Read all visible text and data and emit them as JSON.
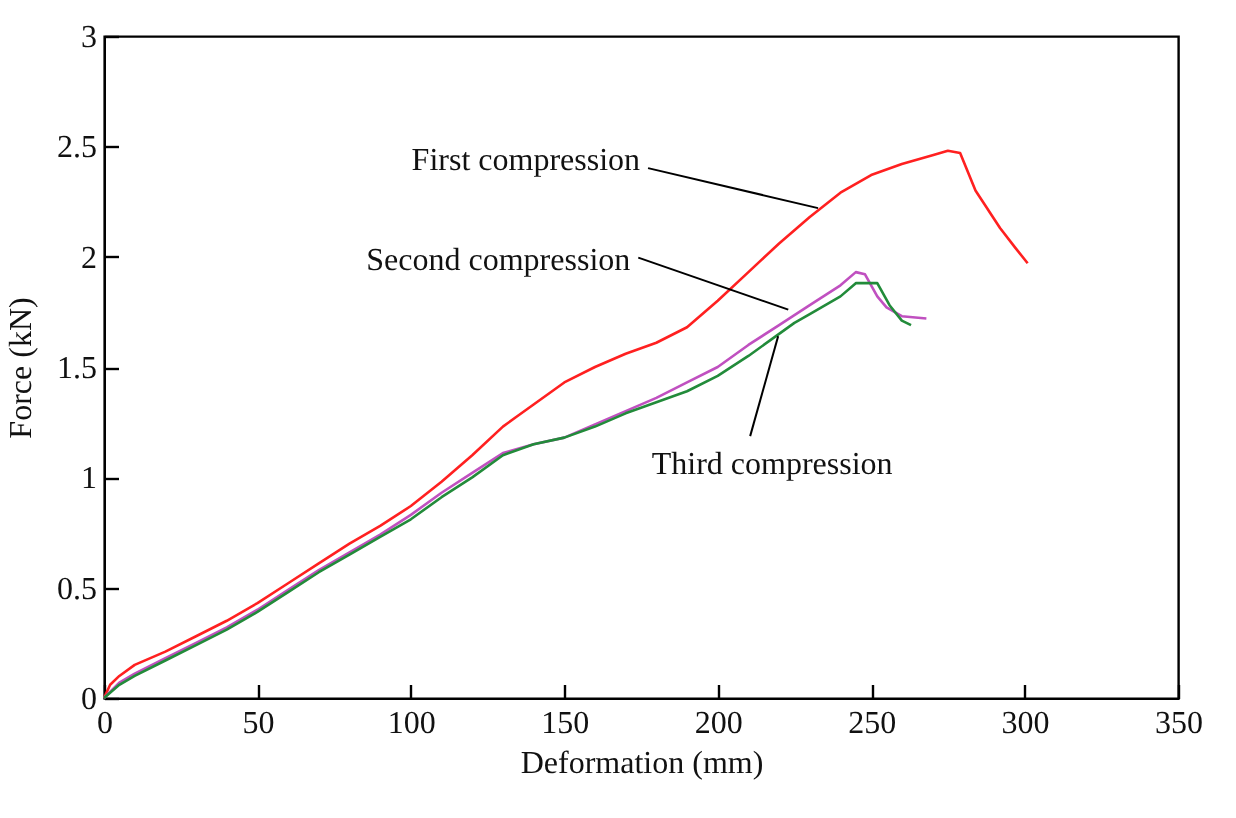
{
  "chart_data": {
    "type": "line",
    "xlabel": "Deformation (mm)",
    "ylabel": "Force (kN)",
    "xlim": [
      0,
      350
    ],
    "xticks": [
      0,
      50,
      100,
      150,
      200,
      250,
      300,
      350
    ],
    "ylim": [
      0,
      3
    ],
    "yticks": [
      0,
      0.5,
      1,
      1.5,
      2,
      2.5,
      3
    ],
    "grid": false,
    "legend": false,
    "series": [
      {
        "color": "#ff2020",
        "x": [
          0,
          2,
          5,
          10,
          20,
          30,
          40,
          50,
          60,
          70,
          80,
          90,
          100,
          110,
          120,
          130,
          135,
          140,
          150,
          160,
          170,
          180,
          190,
          200,
          210,
          220,
          230,
          240,
          250,
          260,
          270,
          275,
          279,
          284,
          292,
          297,
          301
        ],
        "values": [
          0,
          0.06,
          0.1,
          0.15,
          0.21,
          0.28,
          0.35,
          0.43,
          0.52,
          0.61,
          0.7,
          0.78,
          0.87,
          0.98,
          1.1,
          1.23,
          1.28,
          1.33,
          1.43,
          1.5,
          1.56,
          1.61,
          1.68,
          1.8,
          1.93,
          2.06,
          2.18,
          2.29,
          2.37,
          2.42,
          2.46,
          2.48,
          2.47,
          2.3,
          2.13,
          2.04,
          1.97
        ]
      },
      {
        "color": "#c050c0",
        "x": [
          0,
          5,
          10,
          20,
          30,
          40,
          50,
          60,
          70,
          80,
          90,
          100,
          110,
          120,
          130,
          140,
          150,
          160,
          170,
          180,
          190,
          200,
          210,
          220,
          230,
          240,
          245,
          248,
          252,
          255,
          260,
          268
        ],
        "values": [
          0,
          0.07,
          0.11,
          0.18,
          0.25,
          0.32,
          0.4,
          0.49,
          0.58,
          0.66,
          0.74,
          0.83,
          0.93,
          1.02,
          1.11,
          1.15,
          1.18,
          1.24,
          1.3,
          1.36,
          1.43,
          1.5,
          1.6,
          1.69,
          1.78,
          1.87,
          1.93,
          1.92,
          1.82,
          1.77,
          1.73,
          1.72
        ]
      },
      {
        "color": "#228b3a",
        "x": [
          0,
          5,
          10,
          20,
          30,
          40,
          50,
          60,
          70,
          80,
          90,
          100,
          110,
          120,
          130,
          140,
          150,
          160,
          170,
          180,
          190,
          200,
          210,
          220,
          225,
          230,
          240,
          245,
          252,
          256,
          260,
          263
        ],
        "values": [
          0,
          0.06,
          0.1,
          0.17,
          0.24,
          0.31,
          0.39,
          0.48,
          0.57,
          0.65,
          0.73,
          0.81,
          0.91,
          1.0,
          1.1,
          1.15,
          1.18,
          1.23,
          1.29,
          1.34,
          1.39,
          1.46,
          1.55,
          1.65,
          1.7,
          1.74,
          1.82,
          1.88,
          1.88,
          1.78,
          1.71,
          1.69
        ]
      }
    ],
    "annotations": [
      {
        "text": "First compression",
        "x": 232.7,
        "y": 2.22
      },
      {
        "text": "Second compression",
        "x": 223,
        "y": 1.76
      },
      {
        "text": "Third compression",
        "x": 219.7,
        "y": 1.64
      }
    ]
  }
}
